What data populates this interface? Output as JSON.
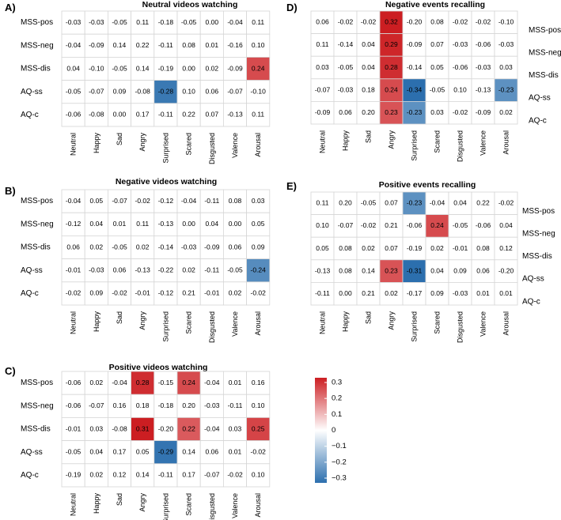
{
  "figure": {
    "panel_letters": [
      "A)",
      "B)",
      "C)",
      "D)",
      "E)"
    ]
  },
  "chart_data": [
    {
      "type": "heatmap",
      "panel": "A)",
      "title": "Neutral videos watching",
      "rows": [
        "MSS-pos",
        "MSS-neg",
        "MSS-dis",
        "AQ-ss",
        "AQ-c"
      ],
      "columns": [
        "Neutral",
        "Happy",
        "Sad",
        "Angry",
        "Surprised",
        "Scared",
        "Disgusted",
        "Valence",
        "Arousal"
      ],
      "values": [
        [
          -0.03,
          -0.03,
          -0.05,
          0.11,
          -0.18,
          -0.05,
          0.0,
          -0.04,
          0.11
        ],
        [
          -0.04,
          -0.09,
          0.14,
          0.22,
          -0.11,
          0.08,
          0.01,
          -0.16,
          0.1
        ],
        [
          0.04,
          -0.1,
          -0.05,
          0.14,
          -0.19,
          0.0,
          0.02,
          -0.09,
          0.24
        ],
        [
          -0.05,
          -0.07,
          0.09,
          -0.08,
          -0.28,
          0.1,
          0.06,
          -0.07,
          -0.1
        ],
        [
          -0.06,
          -0.08,
          0.0,
          0.17,
          -0.11,
          0.22,
          0.07,
          -0.13,
          0.11
        ]
      ],
      "highlighted": [
        [
          2,
          8
        ],
        [
          3,
          4
        ]
      ]
    },
    {
      "type": "heatmap",
      "panel": "B)",
      "title": "Negative videos watching",
      "rows": [
        "MSS-pos",
        "MSS-neg",
        "MSS-dis",
        "AQ-ss",
        "AQ-c"
      ],
      "columns": [
        "Neutral",
        "Happy",
        "Sad",
        "Angry",
        "Surprised",
        "Scared",
        "Disgusted",
        "Valence",
        "Arousal"
      ],
      "values": [
        [
          -0.04,
          0.05,
          -0.07,
          -0.02,
          -0.12,
          -0.04,
          -0.11,
          0.08,
          0.03
        ],
        [
          -0.12,
          0.04,
          0.01,
          0.11,
          -0.13,
          0.0,
          0.04,
          0.0,
          0.05
        ],
        [
          0.06,
          0.02,
          -0.05,
          0.02,
          -0.14,
          -0.03,
          -0.09,
          0.06,
          0.09
        ],
        [
          -0.01,
          -0.03,
          0.06,
          -0.13,
          -0.22,
          0.02,
          -0.11,
          -0.05,
          -0.24
        ],
        [
          -0.02,
          0.09,
          -0.02,
          -0.01,
          -0.12,
          0.21,
          -0.01,
          0.02,
          -0.02
        ]
      ],
      "highlighted": [
        [
          3,
          8
        ]
      ]
    },
    {
      "type": "heatmap",
      "panel": "C)",
      "title": "Positive videos watching",
      "rows": [
        "MSS-pos",
        "MSS-neg",
        "MSS-dis",
        "AQ-ss",
        "AQ-c"
      ],
      "columns": [
        "Neutral",
        "Happy",
        "Sad",
        "Angry",
        "Surprised",
        "Scared",
        "Disgusted",
        "Valence",
        "Arousal"
      ],
      "values": [
        [
          -0.06,
          0.02,
          -0.04,
          0.28,
          -0.15,
          0.24,
          -0.04,
          0.01,
          0.16
        ],
        [
          -0.06,
          -0.07,
          0.16,
          0.18,
          -0.18,
          0.2,
          -0.03,
          -0.11,
          0.1
        ],
        [
          -0.01,
          0.03,
          -0.08,
          0.31,
          -0.2,
          0.22,
          -0.04,
          0.03,
          0.25
        ],
        [
          -0.05,
          0.04,
          0.17,
          0.05,
          -0.29,
          0.14,
          0.06,
          0.01,
          -0.02
        ],
        [
          -0.19,
          0.02,
          0.12,
          0.14,
          -0.11,
          0.17,
          -0.07,
          -0.02,
          0.1
        ]
      ],
      "highlighted": [
        [
          0,
          3
        ],
        [
          0,
          5
        ],
        [
          2,
          3
        ],
        [
          2,
          5
        ],
        [
          2,
          8
        ],
        [
          3,
          4
        ]
      ]
    },
    {
      "type": "heatmap",
      "panel": "D)",
      "title": "Negative events recalling",
      "rows": [
        "MSS-pos",
        "MSS-neg",
        "MSS-dis",
        "AQ-ss",
        "AQ-c"
      ],
      "columns": [
        "Neutral",
        "Happy",
        "Sad",
        "Angry",
        "Surprised",
        "Scared",
        "Disgusted",
        "Valence",
        "Arousal"
      ],
      "values": [
        [
          0.06,
          -0.02,
          -0.02,
          0.32,
          -0.2,
          0.08,
          -0.02,
          -0.02,
          -0.1
        ],
        [
          0.11,
          -0.14,
          0.04,
          0.29,
          -0.09,
          0.07,
          -0.03,
          -0.06,
          -0.03
        ],
        [
          0.03,
          -0.05,
          0.04,
          0.28,
          -0.14,
          0.05,
          -0.06,
          -0.03,
          0.03
        ],
        [
          -0.07,
          -0.03,
          0.18,
          0.24,
          -0.34,
          -0.05,
          0.1,
          -0.13,
          -0.23
        ],
        [
          -0.09,
          0.06,
          0.2,
          0.23,
          -0.23,
          0.03,
          -0.02,
          -0.09,
          0.02
        ]
      ],
      "highlighted": [
        [
          0,
          3
        ],
        [
          1,
          3
        ],
        [
          2,
          3
        ],
        [
          3,
          3
        ],
        [
          3,
          4
        ],
        [
          3,
          8
        ],
        [
          4,
          3
        ],
        [
          4,
          4
        ]
      ]
    },
    {
      "type": "heatmap",
      "panel": "E)",
      "title": "Positive events recalling",
      "rows": [
        "MSS-pos",
        "MSS-neg",
        "MSS-dis",
        "AQ-ss",
        "AQ-c"
      ],
      "columns": [
        "Neutral",
        "Happy",
        "Sad",
        "Angry",
        "Surprised",
        "Scared",
        "Disgusted",
        "Valence",
        "Arousal"
      ],
      "values": [
        [
          0.11,
          0.2,
          -0.05,
          0.07,
          -0.23,
          -0.04,
          0.04,
          0.22,
          -0.02
        ],
        [
          0.1,
          -0.07,
          -0.02,
          0.21,
          -0.06,
          0.24,
          -0.05,
          -0.06,
          0.04
        ],
        [
          0.05,
          0.08,
          0.02,
          0.07,
          -0.19,
          0.02,
          -0.01,
          0.08,
          0.12
        ],
        [
          -0.13,
          0.08,
          0.14,
          0.23,
          -0.31,
          0.04,
          0.09,
          0.06,
          -0.2
        ],
        [
          -0.11,
          0.0,
          0.21,
          0.02,
          -0.17,
          0.09,
          -0.03,
          0.01,
          0.01
        ]
      ],
      "highlighted": [
        [
          0,
          4
        ],
        [
          1,
          5
        ],
        [
          3,
          3
        ],
        [
          3,
          4
        ]
      ]
    }
  ],
  "colorbar": {
    "ticks": [
      "0.3",
      "0.2",
      "0.1",
      "0",
      "−0.1",
      "−0.2",
      "−0.3"
    ],
    "range": [
      -0.3,
      0.3
    ],
    "colors": {
      "negative": "#2c6fae",
      "zero": "#ffffff",
      "positive": "#cc1e22"
    }
  }
}
